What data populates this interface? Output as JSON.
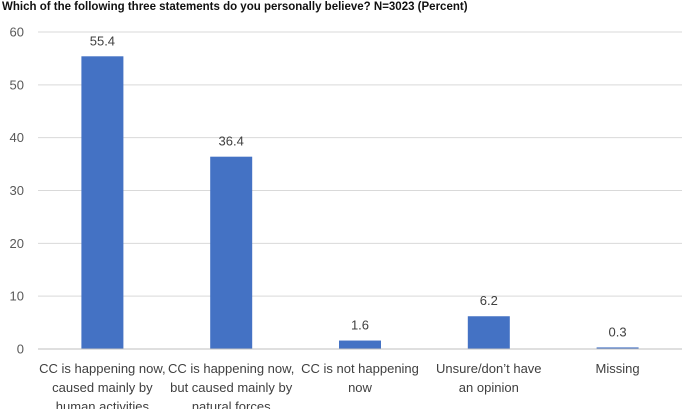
{
  "chart_data": {
    "type": "bar",
    "title": "Which of the following three statements do you personally believe? N=3023 (Percent)",
    "categories": [
      [
        "CC is happening now,",
        "caused mainly by",
        "human activities"
      ],
      [
        "CC is happening now,",
        "but caused mainly by",
        "natural forces"
      ],
      [
        "CC is not happening",
        "now"
      ],
      [
        "Unsure/don’t have",
        "an opinion"
      ],
      [
        "Missing"
      ]
    ],
    "values": [
      55.4,
      36.4,
      1.6,
      6.2,
      0.3
    ],
    "value_labels": [
      "55.4",
      "36.4",
      "1.6",
      "6.2",
      "0.3"
    ],
    "ylim": [
      0,
      60
    ],
    "yticks": [
      "0",
      "10",
      "20",
      "30",
      "40",
      "50",
      "60"
    ],
    "ytick_values": [
      0,
      10,
      20,
      30,
      40,
      50,
      60
    ],
    "grid": true,
    "bar_color": "#4472c4"
  }
}
